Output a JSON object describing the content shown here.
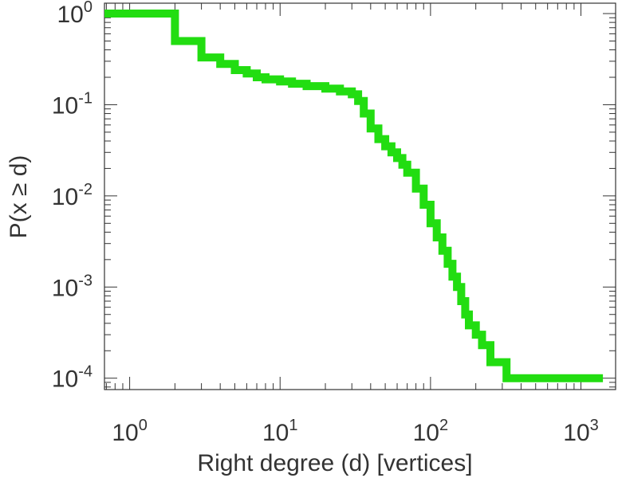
{
  "chart_data": {
    "type": "line",
    "title": "",
    "xlabel": "Right degree (d) [vertices]",
    "ylabel": "P(x ≥ d)",
    "x_scale": "log",
    "y_scale": "log",
    "xlim": [
      0.68,
      1700
    ],
    "ylim": [
      7.5e-05,
      1.3
    ],
    "grid": false,
    "step": true,
    "color": "#22dd11",
    "x_ticks": [
      {
        "base": "10",
        "exp": "0",
        "value": 1
      },
      {
        "base": "10",
        "exp": "1",
        "value": 10
      },
      {
        "base": "10",
        "exp": "2",
        "value": 100
      },
      {
        "base": "10",
        "exp": "3",
        "value": 1000
      }
    ],
    "y_ticks": [
      {
        "base": "10",
        "exp": "0",
        "value": 1
      },
      {
        "base": "10",
        "exp": "-1",
        "value": 0.1
      },
      {
        "base": "10",
        "exp": "-2",
        "value": 0.01
      },
      {
        "base": "10",
        "exp": "-3",
        "value": 0.001
      },
      {
        "base": "10",
        "exp": "-4",
        "value": 0.0001
      }
    ],
    "series": [
      {
        "x": [
          1,
          2,
          3,
          4,
          5,
          6,
          7,
          8,
          10,
          12,
          15,
          20,
          25,
          30,
          33,
          36,
          40,
          45,
          50,
          55,
          60,
          65,
          70,
          80,
          90,
          100,
          110,
          120,
          130,
          140,
          150,
          160,
          170,
          180,
          200,
          220,
          250,
          320,
          1400
        ],
        "y": [
          1,
          0.5,
          0.33,
          0.28,
          0.24,
          0.22,
          0.2,
          0.19,
          0.18,
          0.17,
          0.16,
          0.15,
          0.14,
          0.13,
          0.11,
          0.08,
          0.055,
          0.042,
          0.035,
          0.03,
          0.026,
          0.022,
          0.018,
          0.012,
          0.008,
          0.005,
          0.0035,
          0.0025,
          0.0018,
          0.0013,
          0.001,
          0.0007,
          0.0005,
          0.00038,
          0.0003,
          0.00023,
          0.00015,
          0.0001,
          0.0001
        ]
      }
    ]
  }
}
